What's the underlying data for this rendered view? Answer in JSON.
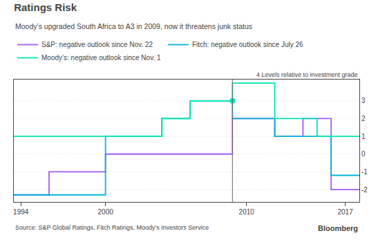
{
  "chart_data": {
    "type": "line",
    "title": "Ratings Risk",
    "subtitle": "Moody’s upgraded South Africa to A3 in 2009, now it threatens junk status",
    "annotations": [
      "4 Levels relative to investment grade",
      "Source: S&P Global Ratings, Fitch Ratings, Moody’s Investors Service",
      "Bloomberg"
    ],
    "series": [
      {
        "name": "S&P: negative outlook since Nov. 22",
        "color": "#a259f7",
        "x": [
          1993.5,
          1996,
          1996,
          2000,
          2000,
          2009,
          2009,
          2012,
          2012,
          2014,
          2014,
          2016,
          2016,
          2018.0
        ],
        "values": [
          -2.3,
          -2.3,
          -1.0,
          -1.0,
          0.0,
          0.0,
          2.0,
          2.0,
          1.0,
          1.0,
          2.0,
          2.0,
          -2.0,
          -2.0
        ]
      },
      {
        "name": "Fitch: negative outlook since July 26",
        "color": "#00b4d8",
        "x": [
          1993.5,
          2000,
          2000,
          2004,
          2004,
          2006,
          2006,
          2009,
          2009,
          2012,
          2012,
          2016,
          2016,
          2018.0
        ],
        "values": [
          -2.3,
          -2.3,
          1.0,
          1.0,
          2.0,
          2.0,
          3.0,
          3.0,
          2.0,
          2.0,
          1.0,
          1.0,
          -1.2,
          -1.2
        ]
      },
      {
        "name": "Moody’s: negative outlook since Nov. 1",
        "color": "#00e5b0",
        "x": [
          1993.5,
          1994,
          2004,
          2004,
          2006,
          2006,
          2009,
          2009,
          2012,
          2012,
          2015,
          2015,
          2018.0
        ],
        "values": [
          1.0,
          1.0,
          1.0,
          2.0,
          2.0,
          3.0,
          3.0,
          4.0,
          4.0,
          2.0,
          2.0,
          1.0,
          1.0
        ]
      }
    ],
    "dot": {
      "x": 2009,
      "y": 3.0,
      "color": "#00e5b0"
    },
    "vline": 2009,
    "xlim": [
      1993.5,
      2018.0
    ],
    "ylim": [
      -2.7,
      4.2
    ],
    "xticks": [
      1994,
      2000,
      2010,
      2017
    ],
    "yticks": [
      -2,
      -1,
      0,
      1,
      2,
      3
    ],
    "grid": true
  }
}
